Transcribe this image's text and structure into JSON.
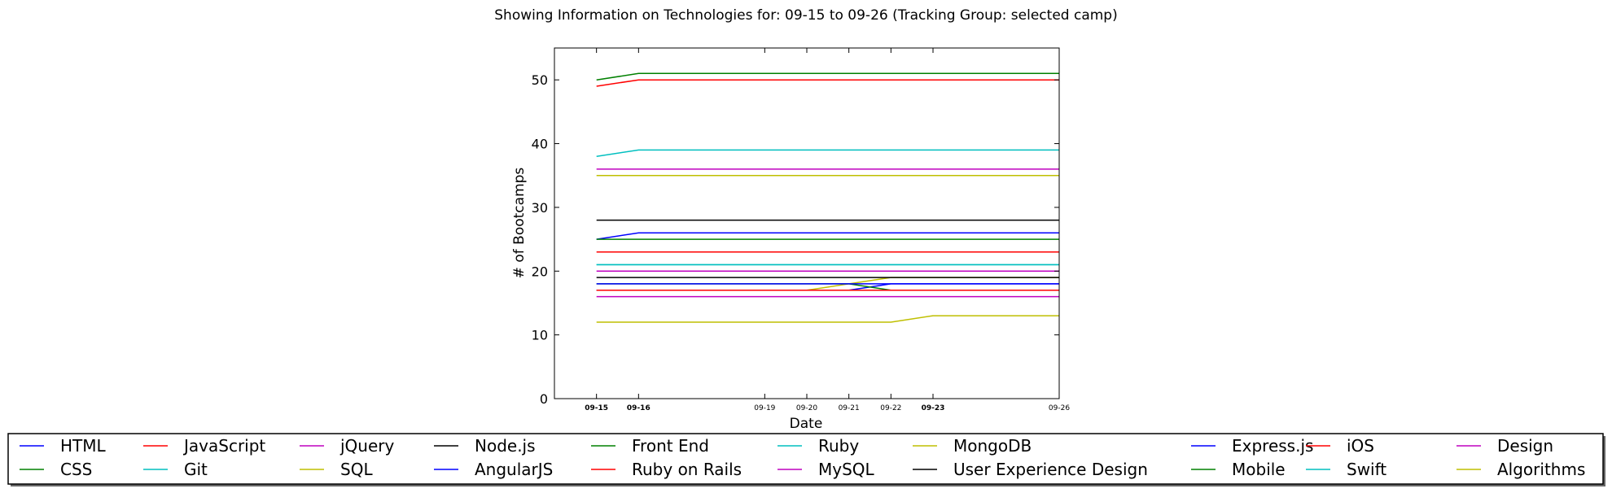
{
  "chart_data": {
    "type": "line",
    "title": "Showing Information on Technologies for: 09-15 to 09-26 (Tracking Group: selected camp)",
    "xlabel": "Date",
    "ylabel": "# of Bootcamps",
    "x": [
      "09-15",
      "09-16",
      "09-19",
      "09-20",
      "09-21",
      "09-22",
      "09-23",
      "09-26"
    ],
    "x_bold": [
      "09-15",
      "09-16",
      "09-23"
    ],
    "x_range": [
      "09-14",
      "09-26"
    ],
    "ylim": [
      0,
      55
    ],
    "yticks": [
      0,
      10,
      20,
      30,
      40,
      50
    ],
    "grid": false,
    "legend_placement": "bottom",
    "series": [
      {
        "name": "HTML",
        "color": "#0000ff",
        "values": [
          25,
          26,
          26,
          26,
          26,
          26,
          26,
          26
        ]
      },
      {
        "name": "CSS",
        "color": "#008000",
        "values": [
          25,
          25,
          25,
          25,
          25,
          25,
          25,
          25
        ]
      },
      {
        "name": "JavaScript",
        "color": "#ff0000",
        "values": [
          23,
          23,
          23,
          23,
          23,
          23,
          23,
          23
        ]
      },
      {
        "name": "Git",
        "color": "#00bfbf",
        "values": [
          21,
          21,
          21,
          21,
          21,
          21,
          21,
          21
        ]
      },
      {
        "name": "jQuery",
        "color": "#bf00bf",
        "values": [
          20,
          20,
          20,
          20,
          20,
          20,
          20,
          20
        ]
      },
      {
        "name": "SQL",
        "color": "#bfbf00",
        "values": [
          17,
          17,
          17,
          17,
          18,
          19,
          19,
          19
        ]
      },
      {
        "name": "Node.js",
        "color": "#000000",
        "values": [
          28,
          28,
          28,
          28,
          28,
          28,
          28,
          28
        ]
      },
      {
        "name": "AngularJS",
        "color": "#0000ff",
        "values": [
          17,
          17,
          17,
          17,
          17,
          18,
          18,
          18
        ]
      },
      {
        "name": "Front End",
        "color": "#008000",
        "values": [
          18,
          18,
          18,
          18,
          18,
          17,
          17,
          17
        ]
      },
      {
        "name": "Ruby on Rails",
        "color": "#ff0000",
        "values": [
          17,
          17,
          17,
          17,
          17,
          17,
          17,
          17
        ]
      },
      {
        "name": "Ruby",
        "color": "#00bfbf",
        "values": [
          38,
          39,
          39,
          39,
          39,
          39,
          39,
          39
        ]
      },
      {
        "name": "MySQL",
        "color": "#bf00bf",
        "values": [
          16,
          16,
          16,
          16,
          16,
          16,
          16,
          16
        ]
      },
      {
        "name": "MongoDB",
        "color": "#bfbf00",
        "values": [
          12,
          12,
          12,
          12,
          12,
          12,
          13,
          13
        ]
      },
      {
        "name": "User Experience Design",
        "color": "#000000",
        "values": [
          19,
          19,
          19,
          19,
          19,
          19,
          19,
          19
        ]
      },
      {
        "name": "Express.js",
        "color": "#0000ff",
        "values": [
          18,
          18,
          18,
          18,
          18,
          18,
          18,
          18
        ]
      },
      {
        "name": "Mobile",
        "color": "#008000",
        "values": [
          50,
          51,
          51,
          51,
          51,
          51,
          51,
          51
        ]
      },
      {
        "name": "iOS",
        "color": "#ff0000",
        "values": [
          49,
          50,
          50,
          50,
          50,
          50,
          50,
          50
        ]
      },
      {
        "name": "Swift",
        "color": "#00bfbf",
        "values": [
          21,
          21,
          21,
          21,
          21,
          21,
          21,
          21
        ]
      },
      {
        "name": "Design",
        "color": "#bf00bf",
        "values": [
          36,
          36,
          36,
          36,
          36,
          36,
          36,
          36
        ]
      },
      {
        "name": "Algorithms",
        "color": "#bfbf00",
        "values": [
          35,
          35,
          35,
          35,
          35,
          35,
          35,
          35
        ]
      }
    ],
    "legend_order": [
      "HTML",
      "CSS",
      "JavaScript",
      "Git",
      "jQuery",
      "SQL",
      "Node.js",
      "AngularJS",
      "Front End",
      "Ruby on Rails",
      "Ruby",
      "MySQL",
      "MongoDB",
      "User Experience Design",
      "Express.js",
      "Mobile",
      "iOS",
      "Swift",
      "Design",
      "Algorithms"
    ]
  }
}
